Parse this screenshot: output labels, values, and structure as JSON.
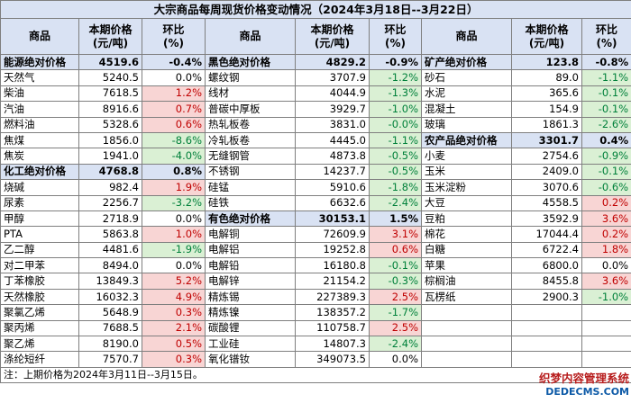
{
  "title": "大宗商品每周现货价格变动情况（2024年3月18日--3月22日）",
  "headers": [
    "商品",
    "本期价格\n(元/吨)",
    "环比\n(%)",
    "商品",
    "本期价格\n(元/吨)",
    "环比\n(%)",
    "商品",
    "本期价格\n(元/吨)",
    "环比\n(%)"
  ],
  "rows": [
    [
      {
        "n": "能源绝对价格",
        "p": "4519.6",
        "c": "-0.4%",
        "agg": true
      },
      {
        "n": "黑色绝对价格",
        "p": "4829.2",
        "c": "-0.9%",
        "agg": true
      },
      {
        "n": "矿产绝对价格",
        "p": "123.8",
        "c": "-0.8%",
        "agg": true
      }
    ],
    [
      {
        "n": "天然气",
        "p": "5240.5",
        "c": "0.0%"
      },
      {
        "n": "螺纹钢",
        "p": "3707.9",
        "c": "-1.2%"
      },
      {
        "n": "砂石",
        "p": "89.0",
        "c": "-1.1%"
      }
    ],
    [
      {
        "n": "柴油",
        "p": "7618.5",
        "c": "1.2%"
      },
      {
        "n": "线材",
        "p": "4044.9",
        "c": "-1.3%"
      },
      {
        "n": "水泥",
        "p": "365.6",
        "c": "-0.1%"
      }
    ],
    [
      {
        "n": "汽油",
        "p": "8916.6",
        "c": "0.7%"
      },
      {
        "n": "普碳中厚板",
        "p": "3929.7",
        "c": "-1.0%"
      },
      {
        "n": "混凝土",
        "p": "154.9",
        "c": "-0.1%"
      }
    ],
    [
      {
        "n": "燃料油",
        "p": "5328.6",
        "c": "0.6%"
      },
      {
        "n": "热轧板卷",
        "p": "3831.0",
        "c": "-0.0%"
      },
      {
        "n": "玻璃",
        "p": "1861.3",
        "c": "-2.6%"
      }
    ],
    [
      {
        "n": "焦煤",
        "p": "1856.0",
        "c": "-8.6%"
      },
      {
        "n": "冷轧板卷",
        "p": "4445.0",
        "c": "-1.1%"
      },
      {
        "n": "农产品绝对价格",
        "p": "3301.7",
        "c": "0.4%",
        "agg": true
      }
    ],
    [
      {
        "n": "焦炭",
        "p": "1941.0",
        "c": "-4.0%"
      },
      {
        "n": "无缝钢管",
        "p": "4873.8",
        "c": "-0.5%"
      },
      {
        "n": "小麦",
        "p": "2754.6",
        "c": "-0.9%"
      }
    ],
    [
      {
        "n": "化工绝对价格",
        "p": "4768.8",
        "c": "0.8%",
        "agg": true
      },
      {
        "n": "不锈钢",
        "p": "14237.7",
        "c": "-0.5%"
      },
      {
        "n": "玉米",
        "p": "2409.0",
        "c": "-0.1%"
      }
    ],
    [
      {
        "n": "烧碱",
        "p": "982.4",
        "c": "1.9%"
      },
      {
        "n": "硅锰",
        "p": "5910.6",
        "c": "-1.8%"
      },
      {
        "n": "玉米淀粉",
        "p": "3070.6",
        "c": "-0.6%"
      }
    ],
    [
      {
        "n": "尿素",
        "p": "2256.7",
        "c": "-3.2%"
      },
      {
        "n": "硅铁",
        "p": "6632.6",
        "c": "-2.4%"
      },
      {
        "n": "大豆",
        "p": "4558.5",
        "c": "0.2%"
      }
    ],
    [
      {
        "n": "甲醇",
        "p": "2718.9",
        "c": "0.0%"
      },
      {
        "n": "有色绝对价格",
        "p": "30153.1",
        "c": "1.5%",
        "agg": true
      },
      {
        "n": "豆粕",
        "p": "3592.9",
        "c": "3.6%"
      }
    ],
    [
      {
        "n": "PTA",
        "p": "5863.8",
        "c": "1.0%"
      },
      {
        "n": "电解铜",
        "p": "72609.9",
        "c": "3.1%"
      },
      {
        "n": "棉花",
        "p": "17044.4",
        "c": "0.2%"
      }
    ],
    [
      {
        "n": "乙二醇",
        "p": "4481.6",
        "c": "-1.9%"
      },
      {
        "n": "电解铝",
        "p": "19252.8",
        "c": "0.6%"
      },
      {
        "n": "白糖",
        "p": "6722.4",
        "c": "1.8%"
      }
    ],
    [
      {
        "n": "对二甲苯",
        "p": "8494.0",
        "c": "0.0%"
      },
      {
        "n": "电解铅",
        "p": "16180.8",
        "c": "-0.1%"
      },
      {
        "n": "苹果",
        "p": "6800.0",
        "c": "0.0%"
      }
    ],
    [
      {
        "n": "丁苯橡胶",
        "p": "13849.3",
        "c": "5.2%"
      },
      {
        "n": "电解锌",
        "p": "21154.2",
        "c": "-0.3%"
      },
      {
        "n": "棕榈油",
        "p": "8455.8",
        "c": "3.6%"
      }
    ],
    [
      {
        "n": "天然橡胶",
        "p": "16032.3",
        "c": "4.9%"
      },
      {
        "n": "精炼锡",
        "p": "227389.3",
        "c": "2.5%"
      },
      {
        "n": "瓦楞纸",
        "p": "2900.3",
        "c": "-1.0%"
      }
    ],
    [
      {
        "n": "聚氯乙烯",
        "p": "5648.9",
        "c": "0.3%"
      },
      {
        "n": "精炼镍",
        "p": "138357.2",
        "c": "-1.7%"
      },
      null
    ],
    [
      {
        "n": "聚丙烯",
        "p": "7688.5",
        "c": "2.1%"
      },
      {
        "n": "碳酸锂",
        "p": "110758.7",
        "c": "2.5%"
      },
      null
    ],
    [
      {
        "n": "聚乙烯",
        "p": "8190.0",
        "c": "0.5%"
      },
      {
        "n": "工业硅",
        "p": "14807.3",
        "c": "-2.4%"
      },
      null
    ],
    [
      {
        "n": "涤纶短纤",
        "p": "7570.7",
        "c": "0.3%"
      },
      {
        "n": "氧化镨钕",
        "p": "349073.5",
        "c": "0.0%"
      },
      null
    ]
  ],
  "note": "注：上期价格为2024年3月11日--3月15日。",
  "watermark": {
    "line1": "织梦内容管理系统",
    "line2": "DEDECMS.COM"
  }
}
